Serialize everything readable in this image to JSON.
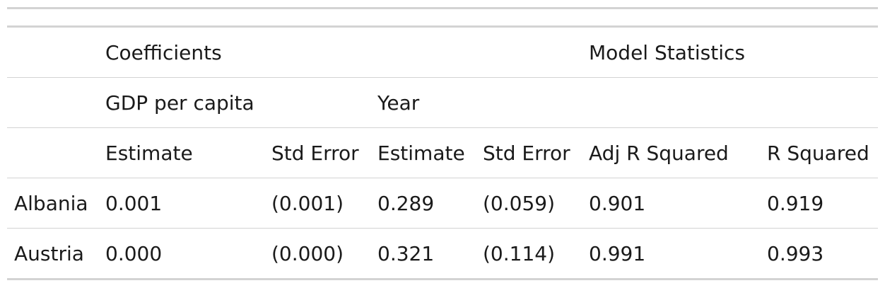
{
  "table": {
    "spanner_top": {
      "coefficients": "Coefficients",
      "model_statistics": "Model Statistics"
    },
    "spanner_mid": {
      "gdp_per_capita": "GDP per capita",
      "year": "Year"
    },
    "columns": [
      "Estimate",
      "Std Error",
      "Estimate",
      "Std Error",
      "Adj R Squared",
      "R Squared"
    ],
    "rows": [
      {
        "country": "Albania",
        "cells": [
          "0.001",
          "(0.001)",
          "0.289",
          "(0.059)",
          "0.901",
          "0.919"
        ]
      },
      {
        "country": "Austria",
        "cells": [
          "0.000",
          "(0.000)",
          "0.321",
          "(0.114)",
          "0.991",
          "0.993"
        ]
      }
    ]
  },
  "colors": {
    "rule": "#d3d3d3",
    "text": "#1a1a1a"
  }
}
